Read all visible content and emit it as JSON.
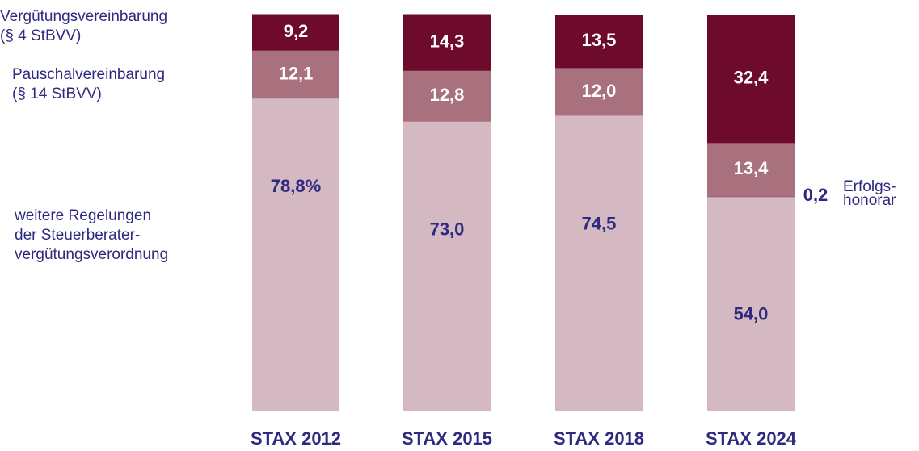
{
  "chart_data": {
    "type": "stacked_bar",
    "categories": [
      "STAX 2012",
      "STAX 2015",
      "STAX 2018",
      "STAX 2024"
    ],
    "ylim": [
      0,
      100
    ],
    "series": [
      {
        "name": "weitere Regelungen\nder Steuerberater-\nvergütungsverordnung",
        "color": "#d4b8c2",
        "label_color": "#2e2a80",
        "values": [
          78.8,
          73.0,
          74.5,
          54.0
        ],
        "value_labels": [
          "78,8%",
          "73,0",
          "74,5",
          "54,0"
        ]
      },
      {
        "name": "Erfolgs-\nhonorar",
        "color": "#8c3a55",
        "label_color": "#2e2a80",
        "values": [
          null,
          null,
          null,
          0.2
        ],
        "value_labels": [
          null,
          null,
          null,
          "0,2"
        ]
      },
      {
        "name": "Pauschalvereinbarung\n(§ 14 StBVV)",
        "color": "#a9707e",
        "label_color": "#ffffff",
        "values": [
          12.1,
          12.8,
          12.0,
          13.4
        ],
        "value_labels": [
          "12,1",
          "12,8",
          "12,0",
          "13,4"
        ]
      },
      {
        "name": "Vergütungsvereinbarung\n(§ 4 StBVV)",
        "color": "#6e0a2b",
        "label_color": "#ffffff",
        "values": [
          9.2,
          14.3,
          13.5,
          32.4
        ],
        "value_labels": [
          "9,2",
          "14,3",
          "13,5",
          "32,4"
        ]
      }
    ]
  }
}
